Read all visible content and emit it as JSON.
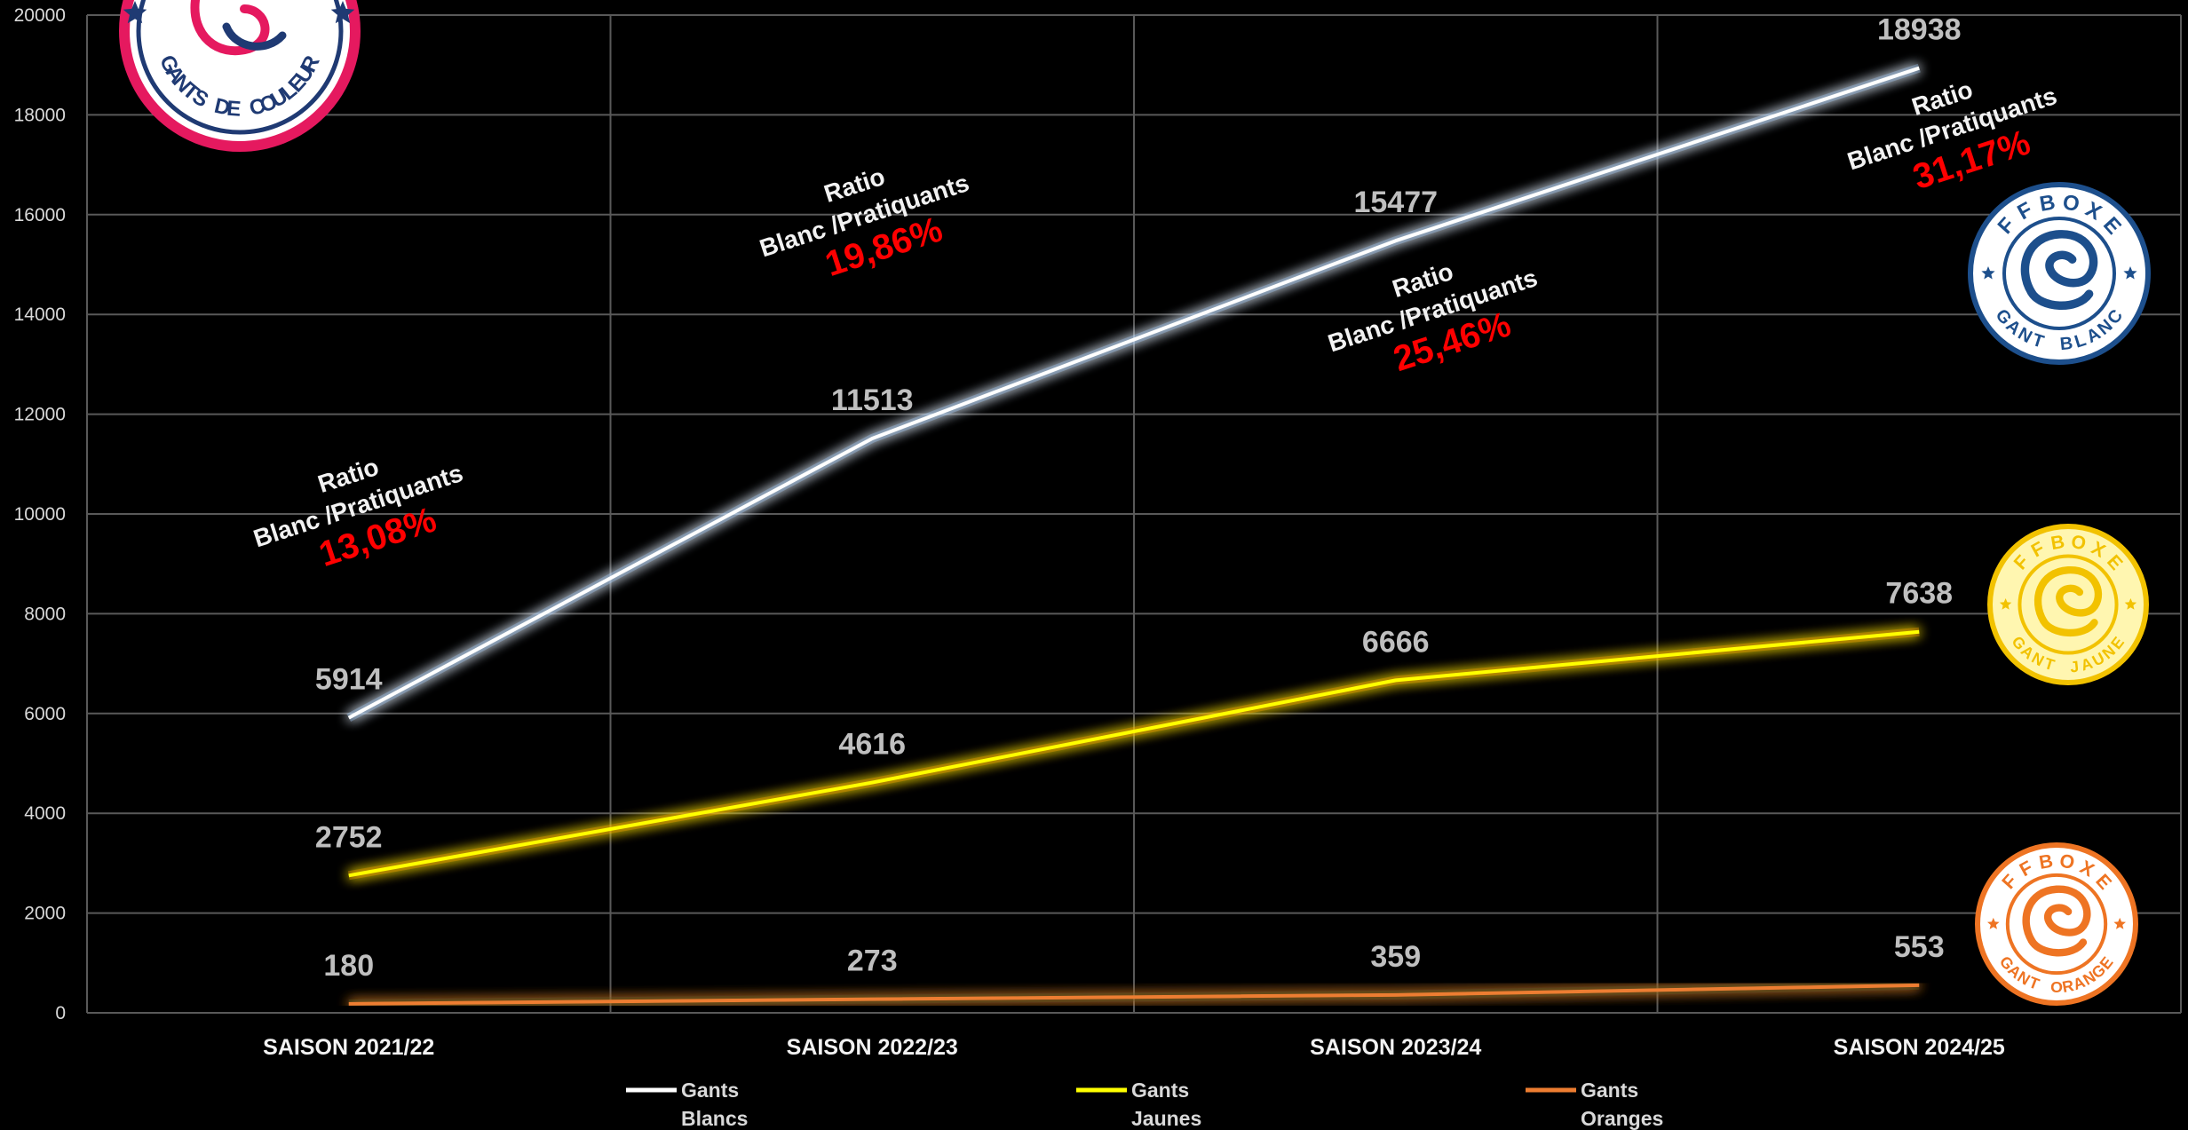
{
  "chart_data": {
    "type": "line",
    "categories": [
      "SAISON 2021/22",
      "SAISON 2022/23",
      "SAISON 2023/24",
      "SAISON 2024/25"
    ],
    "ylim": [
      0,
      20000
    ],
    "yticks": [
      0,
      2000,
      4000,
      6000,
      8000,
      10000,
      12000,
      14000,
      16000,
      18000,
      20000
    ],
    "grid": true,
    "legend_position": "bottom",
    "series": [
      {
        "name": "Gants Blancs",
        "legend_lines": [
          "Gants",
          "Blancs"
        ],
        "color": "#ffffff",
        "glow": "#9ecfff",
        "values": [
          5914,
          11513,
          15477,
          18938
        ]
      },
      {
        "name": "Gants Jaunes",
        "legend_lines": [
          "Gants",
          "Jaunes"
        ],
        "color": "#ffff00",
        "glow": "#ff9900",
        "values": [
          2752,
          4616,
          6666,
          7638
        ]
      },
      {
        "name": "Gants Oranges",
        "legend_lines": [
          "Gants",
          "Oranges"
        ],
        "color": "#ed7d31",
        "glow": "#1a5c1a",
        "values": [
          180,
          273,
          359,
          553
        ]
      }
    ],
    "annotations": [
      {
        "category": "SAISON 2021/22",
        "line1": "Ratio",
        "line2": "Blanc /Pratiquants",
        "value": "13,08%"
      },
      {
        "category": "SAISON 2022/23",
        "line1": "Ratio",
        "line2": "Blanc /Pratiquants",
        "value": "19,86%"
      },
      {
        "category": "SAISON 2023/24",
        "line1": "Ratio",
        "line2": "Blanc /Pratiquants",
        "value": "25,46%"
      },
      {
        "category": "SAISON 2024/25",
        "line1": "Ratio",
        "line2": "Blanc /Pratiquants",
        "value": "31,17%"
      }
    ]
  },
  "logos": {
    "top_left": {
      "text": "GANTS DE COULEUR",
      "ring_color": "#e5195f",
      "inner_color": "#1f3a73"
    },
    "white": {
      "top": "FFBOXE",
      "bottom": "GANT BLANC",
      "color": "#1d4f8c",
      "fill": "#ffffff"
    },
    "yellow": {
      "top": "FFBOXE",
      "bottom": "GANT JAUNE",
      "color": "#f2c200",
      "fill": "#fff6b0"
    },
    "orange": {
      "top": "FFBOXE",
      "bottom": "GANT ORANGE",
      "color": "#ee7423",
      "fill": "#ffffff"
    }
  }
}
